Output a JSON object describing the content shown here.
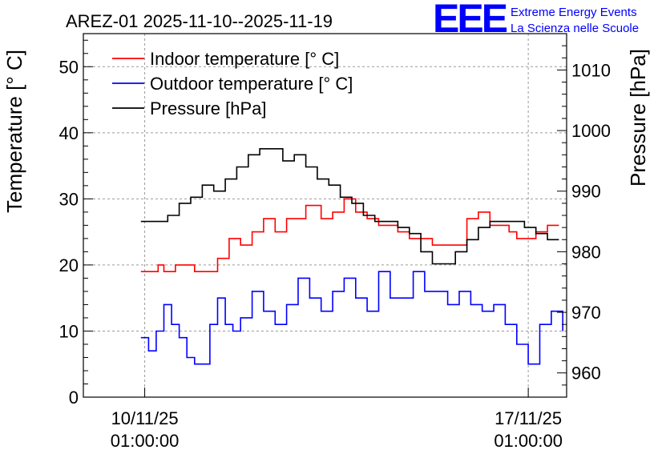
{
  "chart_data": {
    "type": "line",
    "title": "AREZ-01 2025-11-10--2025-11-19",
    "ylabel": "Temperature [° C]",
    "y2label": "Pressure [hPa]",
    "ylim": [
      0,
      55
    ],
    "y2lim": [
      956,
      1016
    ],
    "xlim": [
      -0.16,
      1.1
    ],
    "xlabel_ticks": [
      {
        "x": 0,
        "line1": "10/11/25",
        "line2": "01:00:00"
      },
      {
        "x": 1,
        "line1": "17/11/25",
        "line2": "01:00:00"
      }
    ],
    "yticks": [
      0,
      10,
      20,
      30,
      40,
      50
    ],
    "y2ticks": [
      960,
      970,
      980,
      990,
      1000,
      1010
    ],
    "legend_position": "top-left",
    "series": [
      {
        "name": "Indoor temperature [° C]",
        "color": "#ff0000",
        "axis": "left",
        "x": [
          -0.01,
          0.02,
          0.035,
          0.05,
          0.08,
          0.11,
          0.13,
          0.17,
          0.19,
          0.22,
          0.25,
          0.28,
          0.31,
          0.34,
          0.37,
          0.42,
          0.46,
          0.49,
          0.52,
          0.55,
          0.58,
          0.61,
          0.63,
          0.66,
          0.69,
          0.72,
          0.75,
          0.78,
          0.81,
          0.84,
          0.87,
          0.9,
          0.95,
          0.97,
          1.0,
          1.02,
          1.05,
          1.08
        ],
        "values": [
          19,
          19,
          20,
          19,
          20,
          20,
          19,
          19,
          21,
          24,
          23,
          25,
          27,
          25,
          27,
          29,
          27,
          28,
          30,
          28,
          27,
          26,
          26,
          25,
          24,
          24,
          23,
          23,
          23,
          27,
          28,
          26,
          25,
          24,
          24,
          25,
          26,
          26
        ]
      },
      {
        "name": "Outdoor temperature [° C]",
        "color": "#0000ff",
        "axis": "left",
        "x": [
          -0.01,
          0.01,
          0.03,
          0.05,
          0.07,
          0.09,
          0.11,
          0.13,
          0.15,
          0.17,
          0.19,
          0.21,
          0.23,
          0.25,
          0.28,
          0.31,
          0.34,
          0.37,
          0.4,
          0.43,
          0.46,
          0.49,
          0.52,
          0.55,
          0.58,
          0.61,
          0.64,
          0.67,
          0.7,
          0.73,
          0.76,
          0.79,
          0.82,
          0.85,
          0.88,
          0.91,
          0.94,
          0.97,
          1.0,
          1.03,
          1.06,
          1.09
        ],
        "values": [
          9,
          7,
          10,
          14,
          11,
          9,
          6,
          5,
          5,
          11,
          15,
          11,
          10,
          12,
          16,
          13,
          11,
          14,
          18,
          15,
          13,
          16,
          18,
          15,
          13,
          19,
          15,
          15,
          19,
          16,
          16,
          14,
          16,
          14,
          13,
          14,
          11,
          8,
          5,
          11,
          13,
          10
        ]
      },
      {
        "name": "Pressure [hPa]",
        "color": "#000000",
        "axis": "right",
        "x": [
          -0.01,
          0.03,
          0.06,
          0.09,
          0.12,
          0.15,
          0.18,
          0.21,
          0.24,
          0.27,
          0.3,
          0.33,
          0.36,
          0.39,
          0.42,
          0.45,
          0.48,
          0.51,
          0.54,
          0.57,
          0.6,
          0.63,
          0.66,
          0.69,
          0.72,
          0.75,
          0.78,
          0.81,
          0.84,
          0.87,
          0.9,
          0.93,
          0.96,
          0.99,
          1.02,
          1.05,
          1.08
        ],
        "values": [
          985,
          985,
          986,
          988,
          989,
          991,
          990,
          992,
          994,
          996,
          997,
          997,
          995,
          996,
          994,
          992,
          991,
          989,
          988,
          986,
          985,
          985,
          984,
          983,
          980,
          978,
          978,
          980,
          982,
          984,
          985,
          985,
          985,
          984,
          983,
          982,
          982
        ]
      }
    ]
  },
  "logo": {
    "mark": "EEE",
    "line1": "Extreme Energy Events",
    "line2": "La Scienza nelle Scuole"
  }
}
